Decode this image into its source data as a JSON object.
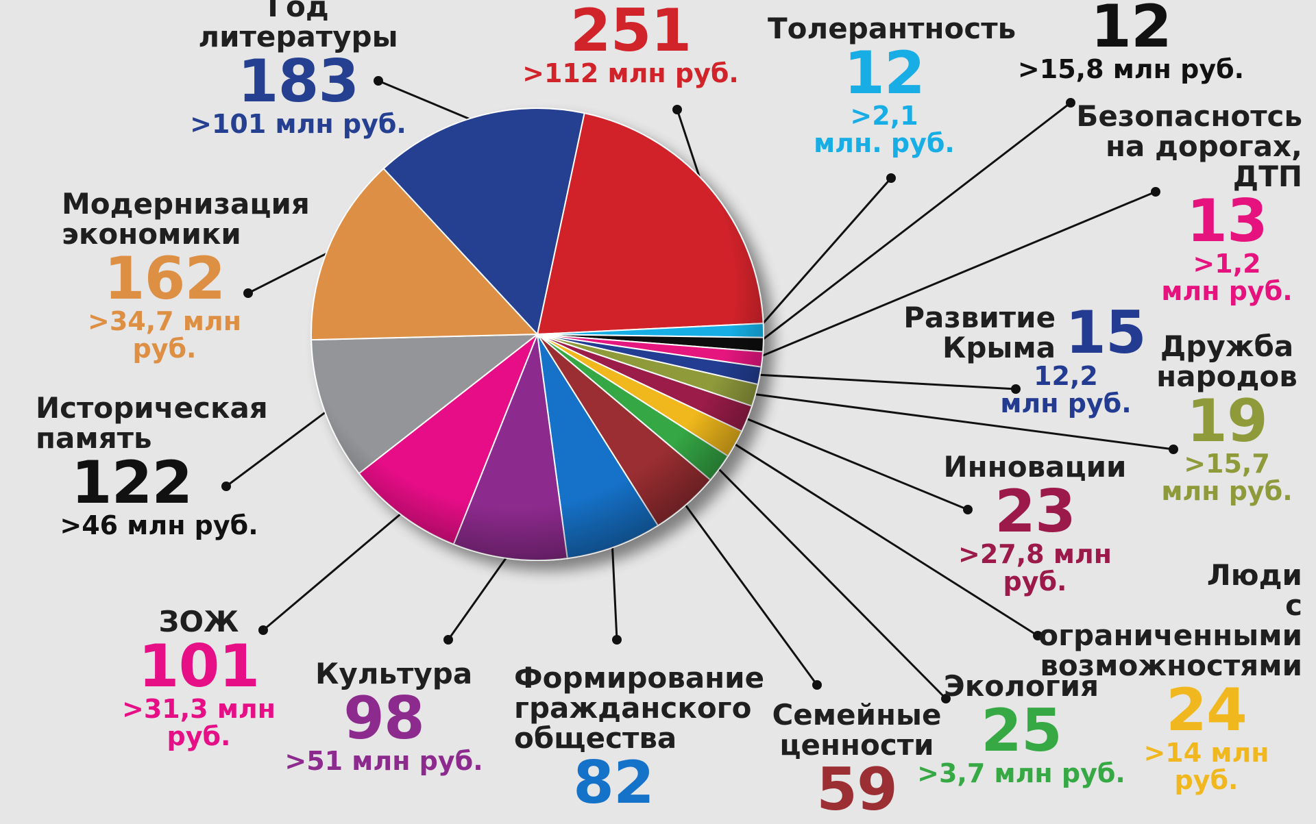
{
  "chart_data": {
    "type": "pie",
    "title": "",
    "slices": [
      {
        "name": "",
        "count": 251,
        "amount": ">112 млн руб.",
        "color": "#d1232a"
      },
      {
        "name": "Толерантность",
        "count": 12,
        "amount": ">2,1 млн. руб.",
        "color": "#18aee5"
      },
      {
        "name": "",
        "count": 12,
        "amount": ">15,8 млн руб.",
        "color": "#111111"
      },
      {
        "name": "Безопаснотсь на дорогах, ДТП",
        "count": 13,
        "amount": ">1,2 млн руб.",
        "color": "#e6137f"
      },
      {
        "name": "Развитие Крыма",
        "count": 15,
        "amount": "12,2 млн руб.",
        "color": "#233c91"
      },
      {
        "name": "Дружба народов",
        "count": 19,
        "amount": ">15,7 млн руб.",
        "color": "#8f9a3a"
      },
      {
        "name": "Инновации",
        "count": 23,
        "amount": ">27,8 млн руб.",
        "color": "#9b1a4a"
      },
      {
        "name": "Люди с ограниченными возможностями",
        "count": 24,
        "amount": ">14 млн руб.",
        "color": "#f0b81e"
      },
      {
        "name": "Экология",
        "count": 25,
        "amount": ">3,7 млн руб.",
        "color": "#36a844"
      },
      {
        "name": "Семейные ценности",
        "count": 59,
        "amount": "",
        "color": "#9b2f33"
      },
      {
        "name": "Формирование гражданского общества",
        "count": 82,
        "amount": "",
        "color": "#1572c9"
      },
      {
        "name": "Культура",
        "count": 98,
        "amount": ">51 млн руб.",
        "color": "#8d2a8d"
      },
      {
        "name": "ЗОЖ",
        "count": 101,
        "amount": ">31,3 млн руб.",
        "color": "#e60f86"
      },
      {
        "name": "Историческая память",
        "count": 122,
        "amount": ">46 млн руб.",
        "color": "#939598"
      },
      {
        "name": "Модернизация экономики",
        "count": 162,
        "amount": ">34,7 млн руб.",
        "color": "#dd8f44"
      },
      {
        "name": "Год литературы",
        "count": 183,
        "amount": ">101 млн руб.",
        "color": "#253f91"
      }
    ]
  },
  "labels": {
    "top_red": {
      "count": "251",
      "amount": ">112 млн руб."
    },
    "tolerance": {
      "name": "Толерантность",
      "count": "12",
      "amount1": ">2,1",
      "amount2": "млн. руб."
    },
    "black12": {
      "count": "12",
      "amount": ">15,8 млн руб."
    },
    "roads": {
      "name1": "Безопаснотсь",
      "name2": "на дорогах, ДТП",
      "count": "13",
      "amount1": ">1,2",
      "amount2": "млн руб."
    },
    "crimea": {
      "name1": "Развитие",
      "name2": "Крыма",
      "count": "15",
      "amount1": "12,2",
      "amount2": "млн руб."
    },
    "friendship": {
      "name1": "Дружба",
      "name2": "народов",
      "count": "19",
      "amount1": ">15,7",
      "amount2": "млн руб."
    },
    "innovation": {
      "name": "Инновации",
      "count": "23",
      "amount": ">27,8 млн руб."
    },
    "disabled": {
      "name1": "Люди",
      "name2": "с ограниченными",
      "name3": "возможностями",
      "count": "24",
      "amount": ">14 млн руб."
    },
    "ecology": {
      "name": "Экология",
      "count": "25",
      "amount": ">3,7 млн руб."
    },
    "family": {
      "name1": "Семейные",
      "name2": "ценности",
      "count": "59"
    },
    "civil": {
      "name1": "Формирование",
      "name2": "гражданского",
      "name3": "общества",
      "count": "82"
    },
    "culture": {
      "name": "Культура",
      "count": "98",
      "amount": ">51 млн руб."
    },
    "zozh": {
      "name": "ЗОЖ",
      "count": "101",
      "amount": ">31,3 млн руб."
    },
    "history": {
      "name1": "Историческая",
      "name2": "память",
      "count": "122",
      "amount": ">46 млн руб."
    },
    "modern": {
      "name1": "Модернизация",
      "name2": "экономики",
      "count": "162",
      "amount": ">34,7 млн руб."
    },
    "literature": {
      "name1": "Год",
      "name2": "литературы",
      "count": "183",
      "amount": ">101 млн руб."
    }
  }
}
